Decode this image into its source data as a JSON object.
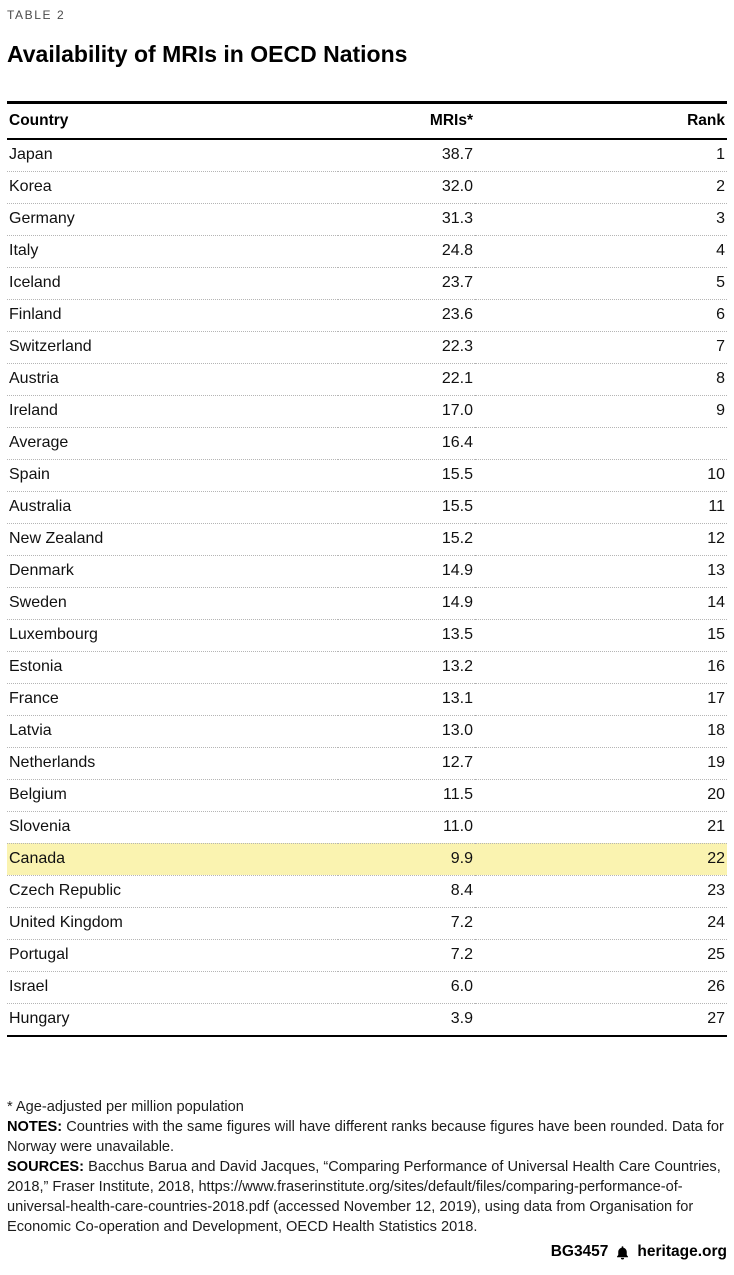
{
  "page": {
    "kicker": "TABLE 2",
    "title": "Availability of MRIs in OECD Nations",
    "footnote_star": "* Age-adjusted per million population",
    "notes_label": "NOTES:",
    "notes_text": " Countries with the same figures will have different ranks because figures have been rounded. Data for Norway were unavailable.",
    "sources_label": "SOURCES:",
    "sources_text": " Bacchus Barua and David Jacques, “Comparing Performance of Universal Health Care Countries, 2018,” Fraser Institute, 2018, https://www.fraserinstitute.org/sites/default/files/comparing-performance-of-universal-health-care-countries-2018.pdf (accessed November 12, 2019), using data from Organisation for Economic Co-operation and Development, OECD Health Statistics 2018.",
    "footer_id": "BG3457",
    "footer_site": "heritage.org",
    "highlight_color": "#FAF3B0"
  },
  "chart_data": {
    "type": "table",
    "title": "Availability of MRIs in OECD Nations",
    "columns": [
      "Country",
      "MRIs*",
      "Rank"
    ],
    "rows": [
      {
        "country": "Japan",
        "mris": "38.7",
        "rank": "1"
      },
      {
        "country": "Korea",
        "mris": "32.0",
        "rank": "2"
      },
      {
        "country": "Germany",
        "mris": "31.3",
        "rank": "3"
      },
      {
        "country": "Italy",
        "mris": "24.8",
        "rank": "4"
      },
      {
        "country": "Iceland",
        "mris": "23.7",
        "rank": "5"
      },
      {
        "country": "Finland",
        "mris": "23.6",
        "rank": "6"
      },
      {
        "country": "Switzerland",
        "mris": "22.3",
        "rank": "7"
      },
      {
        "country": "Austria",
        "mris": "22.1",
        "rank": "8"
      },
      {
        "country": "Ireland",
        "mris": "17.0",
        "rank": "9"
      },
      {
        "country": "Average",
        "mris": "16.4",
        "rank": ""
      },
      {
        "country": "Spain",
        "mris": "15.5",
        "rank": "10"
      },
      {
        "country": "Australia",
        "mris": "15.5",
        "rank": "11"
      },
      {
        "country": "New Zealand",
        "mris": "15.2",
        "rank": "12"
      },
      {
        "country": "Denmark",
        "mris": "14.9",
        "rank": "13"
      },
      {
        "country": "Sweden",
        "mris": "14.9",
        "rank": "14"
      },
      {
        "country": "Luxembourg",
        "mris": "13.5",
        "rank": "15"
      },
      {
        "country": "Estonia",
        "mris": "13.2",
        "rank": "16"
      },
      {
        "country": "France",
        "mris": "13.1",
        "rank": "17"
      },
      {
        "country": "Latvia",
        "mris": "13.0",
        "rank": "18"
      },
      {
        "country": "Netherlands",
        "mris": "12.7",
        "rank": "19"
      },
      {
        "country": "Belgium",
        "mris": "11.5",
        "rank": "20"
      },
      {
        "country": "Slovenia",
        "mris": "11.0",
        "rank": "21"
      },
      {
        "country": "Canada",
        "mris": "9.9",
        "rank": "22",
        "highlight": true
      },
      {
        "country": "Czech Republic",
        "mris": "8.4",
        "rank": "23"
      },
      {
        "country": "United Kingdom",
        "mris": "7.2",
        "rank": "24"
      },
      {
        "country": "Portugal",
        "mris": "7.2",
        "rank": "25"
      },
      {
        "country": "Israel",
        "mris": "6.0",
        "rank": "26"
      },
      {
        "country": "Hungary",
        "mris": "3.9",
        "rank": "27"
      }
    ]
  }
}
